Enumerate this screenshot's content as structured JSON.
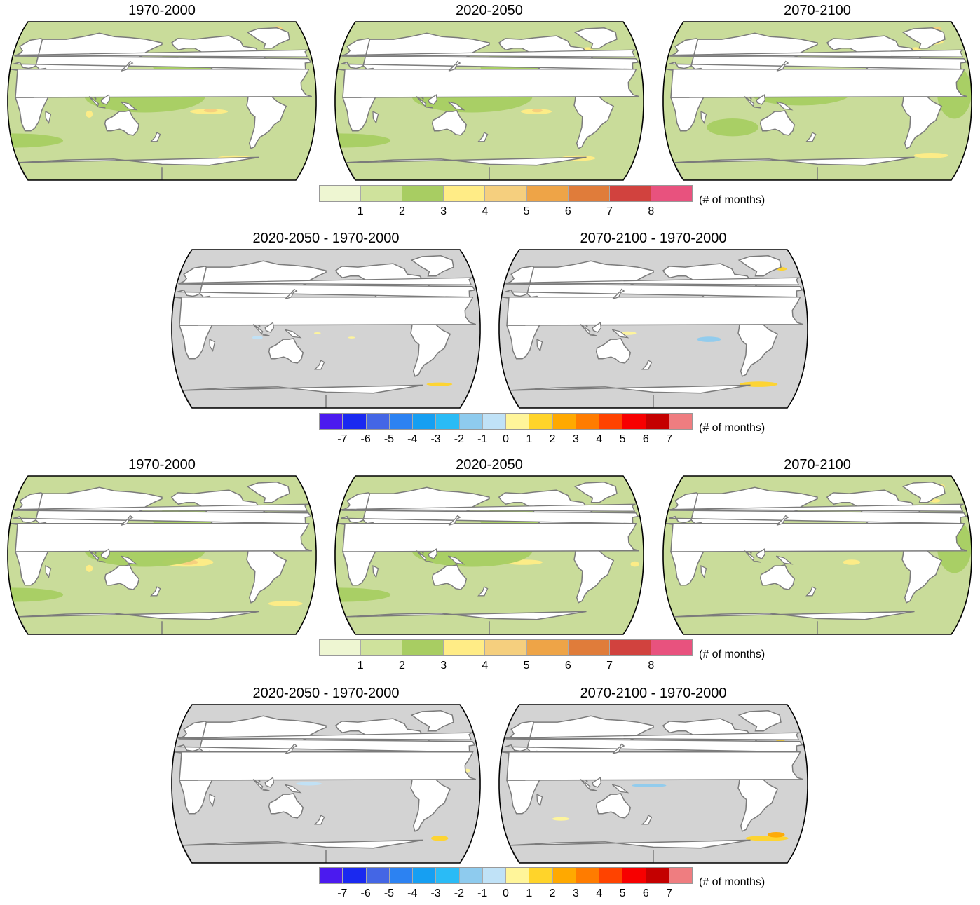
{
  "colors": {
    "ocean_background": "#c9dc9a",
    "difference_background": "#d3d3d3",
    "land": "#ffffff",
    "coastline": "#7b7b7b",
    "outline": "#000000"
  },
  "colorbars": {
    "absolute": {
      "colors": [
        "#eef6d2",
        "#cfe29c",
        "#a8cd62",
        "#ffec86",
        "#f5cf7e",
        "#eea447",
        "#e07c3a",
        "#d1423e",
        "#e8527e"
      ],
      "tick_labels": [
        "1",
        "2",
        "3",
        "4",
        "5",
        "6",
        "7",
        "8"
      ],
      "unit": "(# of months)"
    },
    "difference": {
      "colors": [
        "#4b1aef",
        "#1a29f0",
        "#4466e5",
        "#2c82f2",
        "#169ff2",
        "#2abbf6",
        "#8ecbee",
        "#c0e2f7",
        "#fff59a",
        "#ffd42a",
        "#ffa900",
        "#ff7c00",
        "#ff4300",
        "#f70000",
        "#c40000",
        "#ef7d80"
      ],
      "tick_labels": [
        "-7",
        "-6",
        "-5",
        "-4",
        "-3",
        "-2",
        "-1",
        "0",
        "1",
        "2",
        "3",
        "4",
        "5",
        "6",
        "7"
      ],
      "unit": "(# of months)"
    }
  },
  "maps": [
    {
      "title": "1970-2000",
      "kind": "absolute",
      "patches": [
        {
          "lon": -125,
          "lat": -12,
          "rx": 22,
          "ry": 3,
          "color": "#ffec86"
        },
        {
          "lon": -123,
          "lat": -11,
          "rx": 8,
          "ry": 2,
          "color": "#f5cf7e"
        },
        {
          "lon": -170,
          "lat": 30,
          "rx": 10,
          "ry": 3,
          "color": "#ffec86"
        },
        {
          "lon": 95,
          "lat": -15,
          "rx": 4,
          "ry": 4,
          "color": "#ffec86"
        },
        {
          "lon": -30,
          "lat": 82,
          "rx": 6,
          "ry": 3,
          "color": "#f5cf7e"
        },
        {
          "lon": -90,
          "lat": -65,
          "rx": 20,
          "ry": 3,
          "color": "#ffec86"
        },
        {
          "lon": 160,
          "lat": 5,
          "rx": 70,
          "ry": 18,
          "color": "#a8cd62"
        },
        {
          "lon": -150,
          "lat": 40,
          "rx": 40,
          "ry": 15,
          "color": "#a8cd62"
        },
        {
          "lon": 0,
          "lat": -45,
          "rx": 60,
          "ry": 8,
          "color": "#a8cd62"
        }
      ]
    },
    {
      "title": "2020-2050",
      "kind": "absolute",
      "patches": [
        {
          "lon": -125,
          "lat": -12,
          "rx": 18,
          "ry": 3,
          "color": "#ffec86"
        },
        {
          "lon": -124,
          "lat": -11,
          "rx": 6,
          "ry": 2,
          "color": "#f5cf7e"
        },
        {
          "lon": -35,
          "lat": 75,
          "rx": 8,
          "ry": 3,
          "color": "#f5cf7e"
        },
        {
          "lon": -60,
          "lat": 58,
          "rx": 6,
          "ry": 3,
          "color": "#ffec86"
        },
        {
          "lon": -70,
          "lat": -65,
          "rx": 20,
          "ry": 3,
          "color": "#ffec86"
        },
        {
          "lon": 160,
          "lat": 5,
          "rx": 70,
          "ry": 18,
          "color": "#a8cd62"
        },
        {
          "lon": -150,
          "lat": 40,
          "rx": 40,
          "ry": 15,
          "color": "#a8cd62"
        },
        {
          "lon": 0,
          "lat": -45,
          "rx": 60,
          "ry": 8,
          "color": "#a8cd62"
        }
      ]
    },
    {
      "title": "2070-2100",
      "kind": "absolute",
      "patches": [
        {
          "lon": -35,
          "lat": 68,
          "rx": 12,
          "ry": 4,
          "color": "#ffec86"
        },
        {
          "lon": -25,
          "lat": 82,
          "rx": 6,
          "ry": 2,
          "color": "#f5cf7e"
        },
        {
          "lon": -60,
          "lat": 58,
          "rx": 6,
          "ry": 3,
          "color": "#ffec86"
        },
        {
          "lon": -40,
          "lat": -62,
          "rx": 20,
          "ry": 3,
          "color": "#ffec86"
        },
        {
          "lon": 160,
          "lat": 10,
          "rx": 60,
          "ry": 15,
          "color": "#a8cd62"
        },
        {
          "lon": -20,
          "lat": 10,
          "rx": 20,
          "ry": 30,
          "color": "#a8cd62"
        },
        {
          "lon": 80,
          "lat": -30,
          "rx": 30,
          "ry": 10,
          "color": "#a8cd62"
        }
      ]
    },
    {
      "title": "2020-2050 - 1970-2000",
      "kind": "difference",
      "patches": [
        {
          "lon": -40,
          "lat": -63,
          "rx": 15,
          "ry": 2,
          "color": "#ffd42a"
        },
        {
          "lon": 170,
          "lat": -5,
          "rx": 4,
          "ry": 1,
          "color": "#fff59a"
        },
        {
          "lon": -150,
          "lat": -10,
          "rx": 4,
          "ry": 1,
          "color": "#fff59a"
        },
        {
          "lon": -30,
          "lat": 70,
          "rx": 6,
          "ry": 2,
          "color": "#c0e2f7"
        },
        {
          "lon": 100,
          "lat": -10,
          "rx": 6,
          "ry": 2,
          "color": "#c0e2f7"
        }
      ]
    },
    {
      "title": "2070-2100 - 1970-2000",
      "kind": "difference",
      "patches": [
        {
          "lon": -40,
          "lat": 72,
          "rx": 10,
          "ry": 3,
          "color": "#ffd42a"
        },
        {
          "lon": -20,
          "lat": 68,
          "rx": 6,
          "ry": 2,
          "color": "#ffd42a"
        },
        {
          "lon": -50,
          "lat": -63,
          "rx": 22,
          "ry": 3,
          "color": "#ffd42a"
        },
        {
          "lon": -115,
          "lat": -12,
          "rx": 14,
          "ry": 3,
          "color": "#8ecbee"
        },
        {
          "lon": 60,
          "lat": 10,
          "rx": 8,
          "ry": 2,
          "color": "#fff59a"
        },
        {
          "lon": 150,
          "lat": -5,
          "rx": 10,
          "ry": 2,
          "color": "#fff59a"
        },
        {
          "lon": 140,
          "lat": 20,
          "rx": 10,
          "ry": 3,
          "color": "#c0e2f7"
        }
      ]
    },
    {
      "title": "1970-2000",
      "kind": "absolute",
      "patches": [
        {
          "lon": -150,
          "lat": -8,
          "rx": 30,
          "ry": 5,
          "color": "#ffec86"
        },
        {
          "lon": -150,
          "lat": -8,
          "rx": 12,
          "ry": 3,
          "color": "#f5cf7e"
        },
        {
          "lon": 170,
          "lat": 28,
          "rx": 12,
          "ry": 4,
          "color": "#ffec86"
        },
        {
          "lon": 95,
          "lat": -15,
          "rx": 4,
          "ry": 4,
          "color": "#ffec86"
        },
        {
          "lon": -30,
          "lat": -55,
          "rx": 20,
          "ry": 3,
          "color": "#ffec86"
        },
        {
          "lon": 160,
          "lat": 5,
          "rx": 70,
          "ry": 18,
          "color": "#a8cd62"
        },
        {
          "lon": -150,
          "lat": 40,
          "rx": 40,
          "ry": 15,
          "color": "#a8cd62"
        },
        {
          "lon": 0,
          "lat": -45,
          "rx": 60,
          "ry": 8,
          "color": "#a8cd62"
        }
      ]
    },
    {
      "title": "2020-2050",
      "kind": "absolute",
      "patches": [
        {
          "lon": -140,
          "lat": -8,
          "rx": 22,
          "ry": 3,
          "color": "#ffec86"
        },
        {
          "lon": -35,
          "lat": 72,
          "rx": 10,
          "ry": 3,
          "color": "#ffec86"
        },
        {
          "lon": -10,
          "lat": -10,
          "rx": 5,
          "ry": 3,
          "color": "#ffec86"
        },
        {
          "lon": 160,
          "lat": 5,
          "rx": 70,
          "ry": 18,
          "color": "#a8cd62"
        },
        {
          "lon": -150,
          "lat": 40,
          "rx": 40,
          "ry": 15,
          "color": "#a8cd62"
        },
        {
          "lon": 0,
          "lat": -45,
          "rx": 60,
          "ry": 8,
          "color": "#a8cd62"
        }
      ]
    },
    {
      "title": "2070-2100",
      "kind": "absolute",
      "patches": [
        {
          "lon": -140,
          "lat": -8,
          "rx": 10,
          "ry": 3,
          "color": "#ffec86"
        },
        {
          "lon": -25,
          "lat": 78,
          "rx": 8,
          "ry": 3,
          "color": "#ffec86"
        },
        {
          "lon": -35,
          "lat": 62,
          "rx": 6,
          "ry": 2,
          "color": "#ffec86"
        },
        {
          "lon": 160,
          "lat": 20,
          "rx": 50,
          "ry": 12,
          "color": "#a8cd62"
        },
        {
          "lon": -20,
          "lat": 10,
          "rx": 20,
          "ry": 30,
          "color": "#a8cd62"
        }
      ]
    },
    {
      "title": "2020-2050 - 1970-2000",
      "kind": "difference",
      "patches": [
        {
          "lon": -40,
          "lat": -62,
          "rx": 10,
          "ry": 3,
          "color": "#ffd42a"
        },
        {
          "lon": -40,
          "lat": 70,
          "rx": 8,
          "ry": 2,
          "color": "#ffd42a"
        },
        {
          "lon": 160,
          "lat": 0,
          "rx": 15,
          "ry": 2,
          "color": "#c0e2f7"
        },
        {
          "lon": -130,
          "lat": 30,
          "rx": 8,
          "ry": 2,
          "color": "#c0e2f7"
        },
        {
          "lon": -15,
          "lat": 15,
          "rx": 4,
          "ry": 2,
          "color": "#fff59a"
        }
      ]
    },
    {
      "title": "2070-2100 - 1970-2000",
      "kind": "difference",
      "patches": [
        {
          "lon": -28,
          "lat": 45,
          "rx": 8,
          "ry": 5,
          "color": "#ffd42a"
        },
        {
          "lon": -40,
          "lat": -62,
          "rx": 25,
          "ry": 3,
          "color": "#ffd42a"
        },
        {
          "lon": -30,
          "lat": -58,
          "rx": 10,
          "ry": 3,
          "color": "#ffa900"
        },
        {
          "lon": 175,
          "lat": -2,
          "rx": 20,
          "ry": 2,
          "color": "#8ecbee"
        },
        {
          "lon": -150,
          "lat": 20,
          "rx": 10,
          "ry": 2,
          "color": "#c0e2f7"
        },
        {
          "lon": -40,
          "lat": 75,
          "rx": 10,
          "ry": 3,
          "color": "#fff59a"
        },
        {
          "lon": 70,
          "lat": -40,
          "rx": 10,
          "ry": 2,
          "color": "#fff59a"
        }
      ]
    }
  ]
}
